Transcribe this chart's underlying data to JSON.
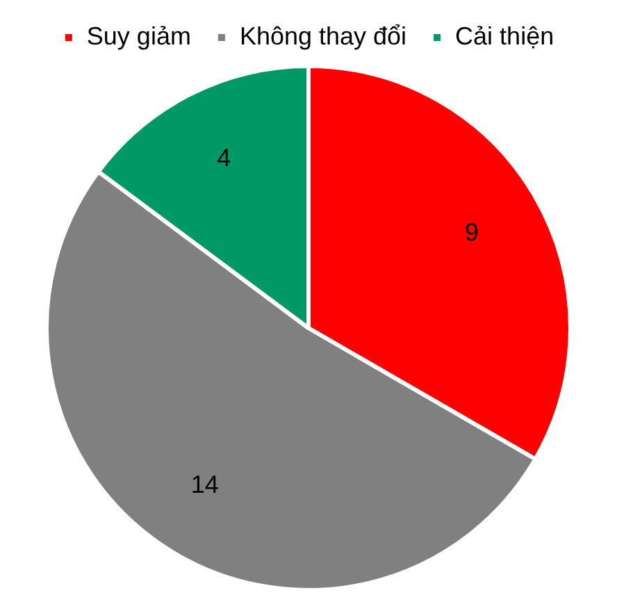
{
  "chart_data": {
    "type": "pie",
    "categories": [
      "Suy giảm",
      "Không thay đổi",
      "Cải thiện"
    ],
    "values": [
      9,
      14,
      4
    ],
    "colors": [
      "#ff0000",
      "#808080",
      "#009966"
    ],
    "legend": "top",
    "data_labels": true
  }
}
